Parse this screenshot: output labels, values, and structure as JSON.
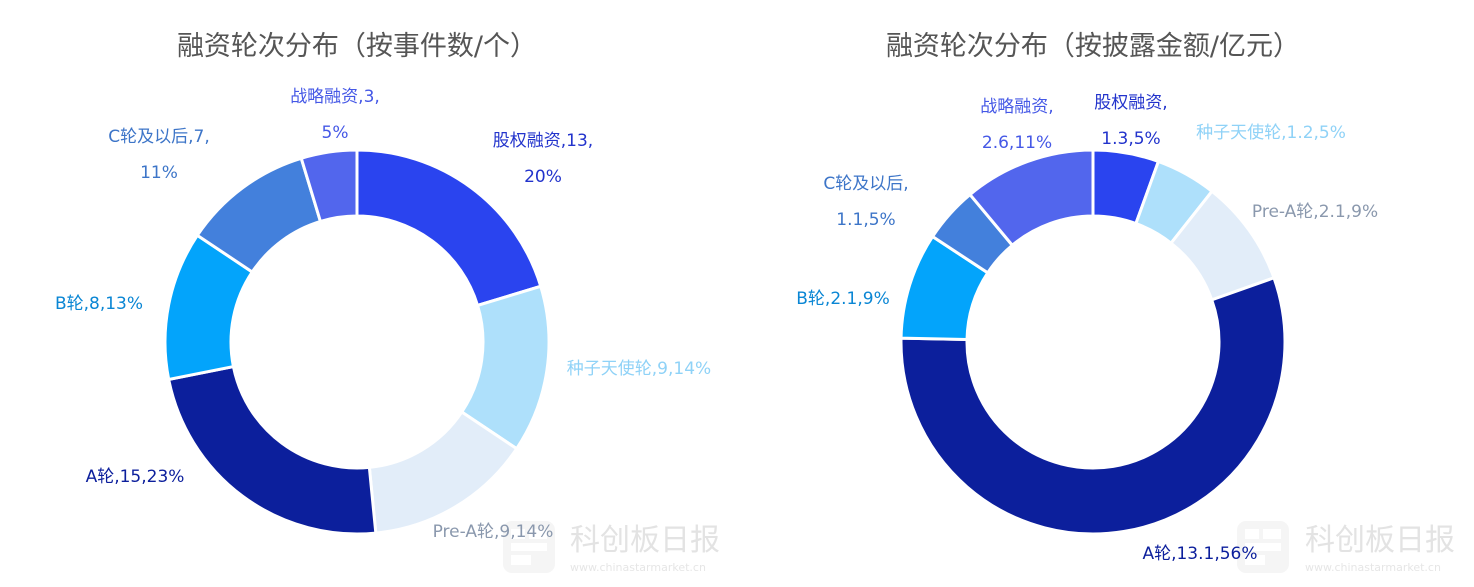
{
  "watermark": {
    "name": "科创板日报",
    "url": "www.chinastarmarket.cn"
  },
  "chart_data": [
    {
      "type": "pie",
      "donut": true,
      "title": "融资轮次分布（按事件数/个）",
      "slices": [
        {
          "name": "股权融资",
          "value": 13,
          "percent": "20%",
          "color": "#2a44ef",
          "label_lines": [
            "股权融资,13,",
            "20%"
          ]
        },
        {
          "name": "种子天使轮",
          "value": 9,
          "percent": "14%",
          "color": "#aee0fb",
          "label_lines": [
            "种子天使轮,9,14%"
          ]
        },
        {
          "name": "Pre-A轮",
          "value": 9,
          "percent": "14%",
          "color": "#e2edf9",
          "label_lines": [
            "Pre-A轮,9,14%"
          ]
        },
        {
          "name": "A轮",
          "value": 15,
          "percent": "23%",
          "color": "#0c1f9c",
          "label_lines": [
            "A轮,15,23%"
          ]
        },
        {
          "name": "B轮",
          "value": 8,
          "percent": "13%",
          "color": "#03a4fb",
          "label_lines": [
            "B轮,8,13%"
          ]
        },
        {
          "name": "C轮及以后",
          "value": 7,
          "percent": "11%",
          "color": "#4380dc",
          "label_lines": [
            "C轮及以后,7,",
            "11%"
          ]
        },
        {
          "name": "战略融资",
          "value": 3,
          "percent": "5%",
          "color": "#5266ed",
          "label_lines": [
            "战略融资,3,",
            "5%"
          ]
        }
      ]
    },
    {
      "type": "pie",
      "donut": true,
      "title": "融资轮次分布（按披露金额/亿元）",
      "slices": [
        {
          "name": "股权融资",
          "value": 1.3,
          "percent": "5%",
          "color": "#2a44ef",
          "label_lines": [
            "股权融资,",
            "1.3,5%"
          ]
        },
        {
          "name": "种子天使轮",
          "value": 1.2,
          "percent": "5%",
          "color": "#aee0fb",
          "label_lines": [
            "种子天使轮,1.2,5%"
          ]
        },
        {
          "name": "Pre-A轮",
          "value": 2.1,
          "percent": "9%",
          "color": "#e2edf9",
          "label_lines": [
            "Pre-A轮,2.1,9%"
          ]
        },
        {
          "name": "A轮",
          "value": 13.1,
          "percent": "56%",
          "color": "#0c1f9c",
          "label_lines": [
            "A轮,13.1,56%"
          ]
        },
        {
          "name": "B轮",
          "value": 2.1,
          "percent": "9%",
          "color": "#03a4fb",
          "label_lines": [
            "B轮,2.1,9%"
          ]
        },
        {
          "name": "C轮及以后",
          "value": 1.1,
          "percent": "5%",
          "color": "#4380dc",
          "label_lines": [
            "C轮及以后,",
            "1.1,5%"
          ]
        },
        {
          "name": "战略融资",
          "value": 2.6,
          "percent": "11%",
          "color": "#5266ed",
          "label_lines": [
            "战略融资,",
            "2.6,11%"
          ]
        }
      ]
    }
  ]
}
